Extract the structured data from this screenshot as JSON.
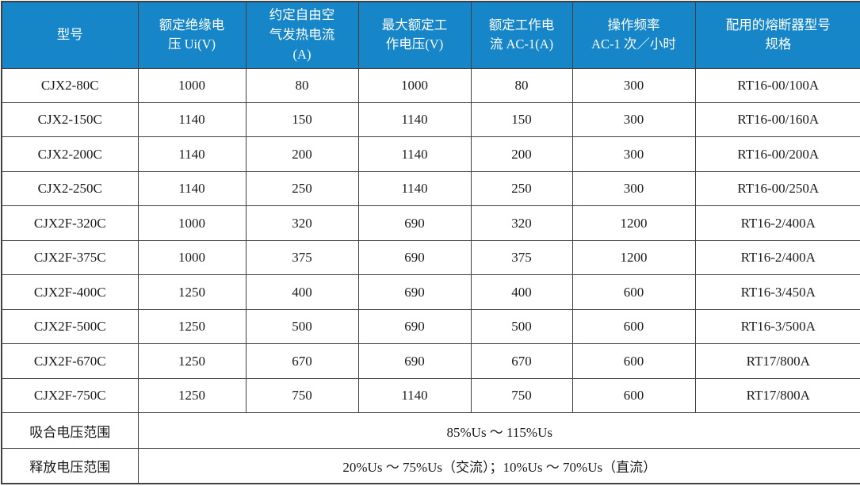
{
  "table": {
    "title": "contactor-specification-table",
    "colors": {
      "header_bg": "#1686c8",
      "header_text": "#ffffff",
      "border": "#404040",
      "body_text": "#1a1a1a",
      "body_bg": "#ffffff"
    },
    "headers": [
      "型号",
      "额定绝缘电\n压 Ui(V)",
      "约定自由空\n气发热电流\n(A)",
      "最大额定工\n作电压(V)",
      "额定工作电\n流 AC-1(A)",
      "操作频率\nAC-1 次／小时",
      "配用的熔断器型号\n规格"
    ],
    "rows": [
      [
        "CJX2-80C",
        "1000",
        "80",
        "1000",
        "80",
        "300",
        "RT16-00/100A"
      ],
      [
        "CJX2-150C",
        "1140",
        "150",
        "1140",
        "150",
        "300",
        "RT16-00/160A"
      ],
      [
        "CJX2-200C",
        "1140",
        "200",
        "1140",
        "200",
        "300",
        "RT16-00/200A"
      ],
      [
        "CJX2-250C",
        "1140",
        "250",
        "1140",
        "250",
        "300",
        "RT16-00/250A"
      ],
      [
        "CJX2F-320C",
        "1000",
        "320",
        "690",
        "320",
        "1200",
        "RT16-2/400A"
      ],
      [
        "CJX2F-375C",
        "1000",
        "375",
        "690",
        "375",
        "1200",
        "RT16-2/400A"
      ],
      [
        "CJX2F-400C",
        "1250",
        "400",
        "690",
        "400",
        "600",
        "RT16-3/450A"
      ],
      [
        "CJX2F-500C",
        "1250",
        "500",
        "690",
        "500",
        "600",
        "RT16-3/500A"
      ],
      [
        "CJX2F-670C",
        "1250",
        "670",
        "690",
        "670",
        "600",
        "RT17/800A"
      ],
      [
        "CJX2F-750C",
        "1250",
        "750",
        "1140",
        "750",
        "600",
        "RT17/800A"
      ]
    ],
    "footer_rows": [
      {
        "label": "吸合电压范围",
        "value": "85%Us ～ 115%Us"
      },
      {
        "label": "释放电压范围",
        "value": "20%Us ～ 75%Us（交流）；10%Us ～ 70%Us（直流）"
      }
    ]
  }
}
